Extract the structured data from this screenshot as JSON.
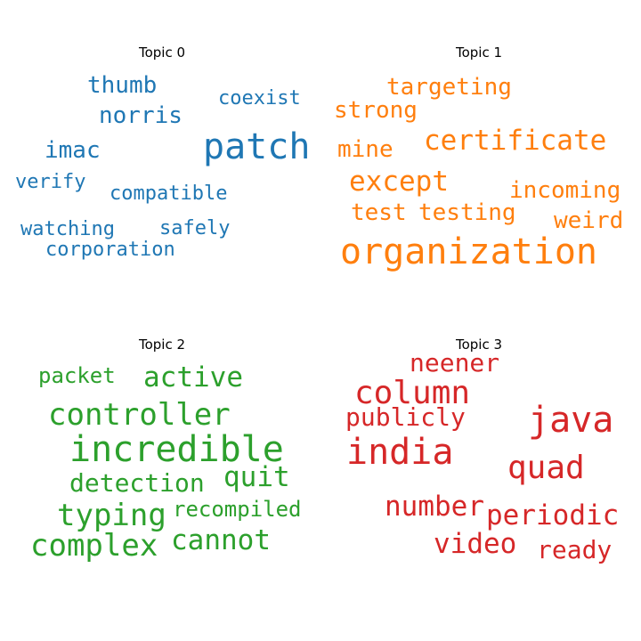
{
  "topics": [
    {
      "title": "Topic 0",
      "color": "#1f77b4",
      "words": [
        "thumb",
        "coexist",
        "norris",
        "patch",
        "imac",
        "verify",
        "compatible",
        "watching",
        "safely",
        "corporation"
      ]
    },
    {
      "title": "Topic 1",
      "color": "#ff7f0e",
      "words": [
        "targeting",
        "strong",
        "certificate",
        "mine",
        "except",
        "incoming",
        "test",
        "testing",
        "weird",
        "organization"
      ]
    },
    {
      "title": "Topic 2",
      "color": "#2ca02c",
      "words": [
        "packet",
        "active",
        "controller",
        "incredible",
        "detection",
        "quit",
        "typing",
        "recompiled",
        "complex",
        "cannot"
      ]
    },
    {
      "title": "Topic 3",
      "color": "#d62728",
      "words": [
        "neener",
        "column",
        "publicly",
        "java",
        "india",
        "quad",
        "number",
        "periodic",
        "video",
        "ready"
      ]
    }
  ]
}
